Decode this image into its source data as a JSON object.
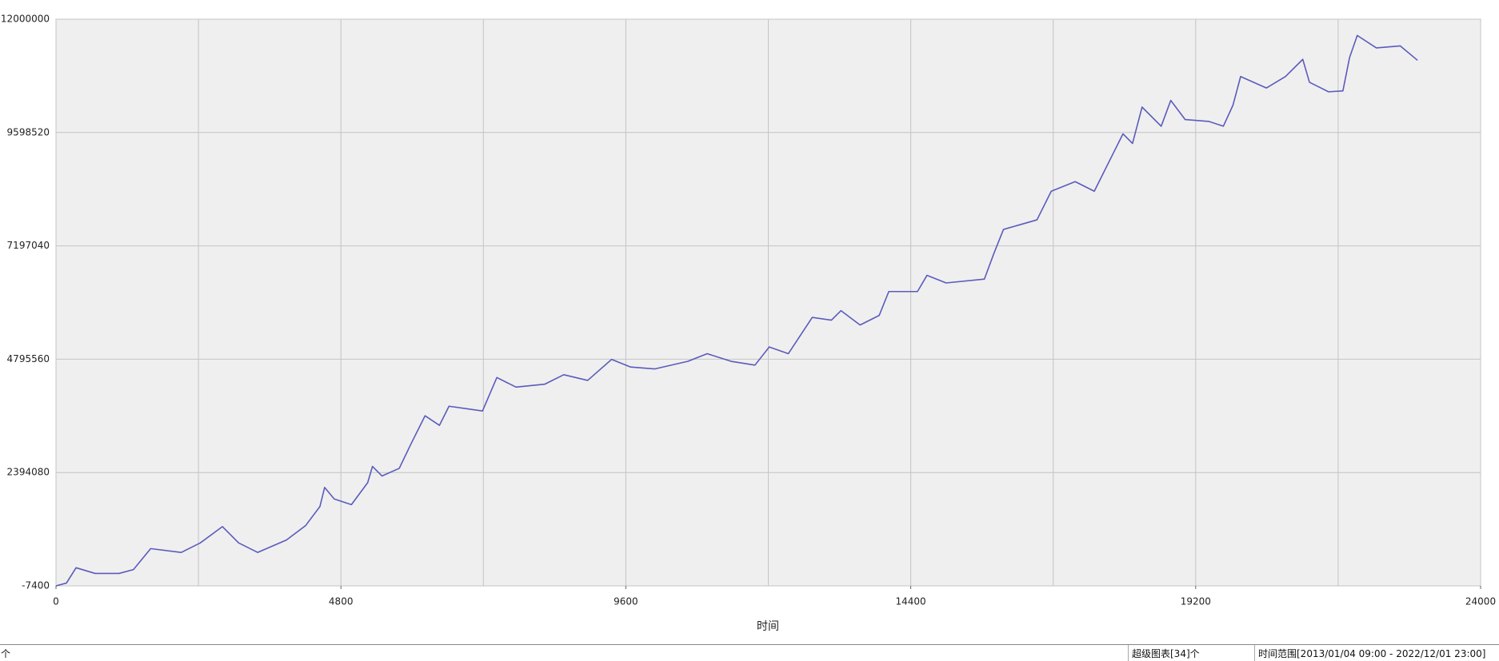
{
  "chart_data": {
    "type": "line",
    "x_label": "时间",
    "x": [
      0,
      177,
      338,
      660,
      1063,
      1305,
      1595,
      2110,
      2432,
      2803,
      3076,
      3399,
      3882,
      4204,
      4446,
      4526,
      4687,
      4977,
      5251,
      5332,
      5493,
      5783,
      5976,
      6218,
      6460,
      6621,
      7185,
      7427,
      7749,
      8232,
      8554,
      8957,
      9359,
      9681,
      10084,
      10648,
      10970,
      11372,
      11775,
      12016,
      12338,
      12741,
      13063,
      13224,
      13546,
      13868,
      14030,
      14513,
      14674,
      14996,
      15640,
      15801,
      15962,
      16526,
      16767,
      17170,
      17492,
      17975,
      18136,
      18297,
      18619,
      18780,
      19022,
      19425,
      19666,
      19828,
      19957,
      20392,
      20714,
      21004,
      21117,
      21439,
      21680,
      21793,
      21922,
      22244,
      22647,
      22937
    ],
    "series": [
      {
        "color": "#5b5bbd",
        "values": [
          -7400,
          53000,
          377000,
          256000,
          256000,
          337000,
          782000,
          701000,
          904000,
          1248000,
          904000,
          701000,
          965000,
          1268000,
          1673000,
          2078000,
          1835000,
          1714000,
          2179000,
          2524000,
          2321000,
          2483000,
          2989000,
          3597000,
          3394000,
          3799000,
          3698000,
          4407000,
          4204000,
          4265000,
          4467000,
          4346000,
          4791000,
          4629000,
          4589000,
          4751000,
          4913000,
          4751000,
          4670000,
          5055000,
          4913000,
          5682000,
          5622000,
          5824000,
          5520000,
          5723000,
          6229000,
          6229000,
          6573000,
          6411000,
          6492000,
          7039000,
          7545000,
          7748000,
          8355000,
          8558000,
          8355000,
          9570000,
          9367000,
          10137000,
          9732000,
          10279000,
          9874000,
          9833000,
          9732000,
          10177000,
          10785000,
          10542000,
          10785000,
          11149000,
          10663000,
          10461000,
          10481000,
          11190000,
          11655000,
          11392000,
          11433000,
          11129000
        ]
      }
    ],
    "xlim": [
      0,
      24000
    ],
    "xticks": [
      0,
      4800,
      9600,
      14400,
      19200,
      24000
    ],
    "ylim": [
      -7400,
      12000000
    ],
    "yticks": [
      -7400,
      2394080,
      4795560,
      7197040,
      9598520,
      12000000
    ],
    "grid": true
  },
  "status_bar": {
    "left": "个",
    "charts": "超级图表[34]个",
    "time_range": "时间范围[2013/01/04 09:00 - 2022/12/01 23:00]"
  }
}
